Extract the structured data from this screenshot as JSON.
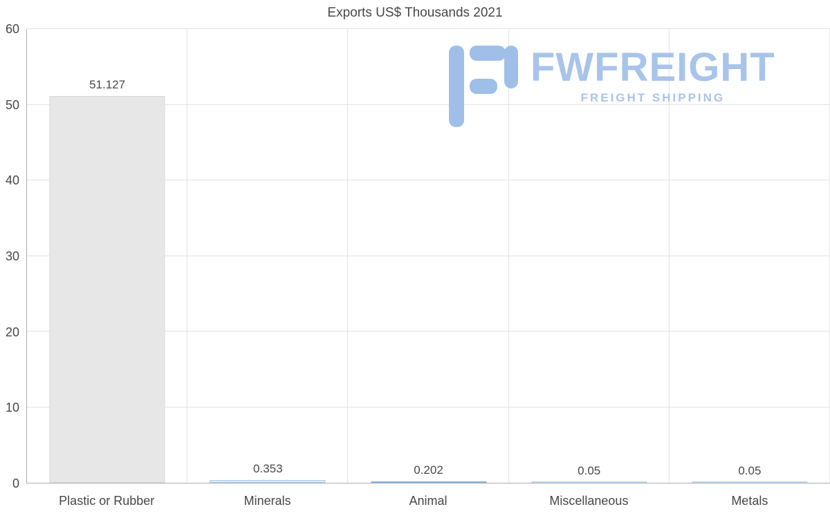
{
  "chart_data": {
    "type": "bar",
    "title": "Exports US$ Thousands 2021",
    "categories": [
      "Plastic or Rubber",
      "Minerals",
      "Animal",
      "Miscellaneous",
      "Metals"
    ],
    "values": [
      51.127,
      0.353,
      0.202,
      0.05,
      0.05
    ],
    "value_labels": [
      "51.127",
      "0.353",
      "0.202",
      "0.05",
      "0.05"
    ],
    "xlabel": "",
    "ylabel": "",
    "ylim": [
      0,
      60
    ],
    "yticks": [
      0,
      10,
      20,
      30,
      40,
      50,
      60
    ],
    "grid": true,
    "legend": "none",
    "bars": [
      {
        "color": "#e7e7e7",
        "border": "#d9d9d9"
      },
      {
        "color": "#d9eafa",
        "border": "#a9cbe9"
      },
      {
        "color": "#cfe2f3",
        "border": "#84b1da"
      },
      {
        "color": "#d9eafa",
        "border": "#bcd8ef"
      },
      {
        "color": "#d9eafa",
        "border": "#bcd8ef"
      }
    ],
    "text_color": "#474747",
    "gridline_color": "#e4e4e4",
    "axis_color": "#ababab"
  },
  "watermark": {
    "brand": "FWFREIGHT",
    "tagline": "FREIGHT SHIPPING",
    "color": "#a8c4eb"
  }
}
